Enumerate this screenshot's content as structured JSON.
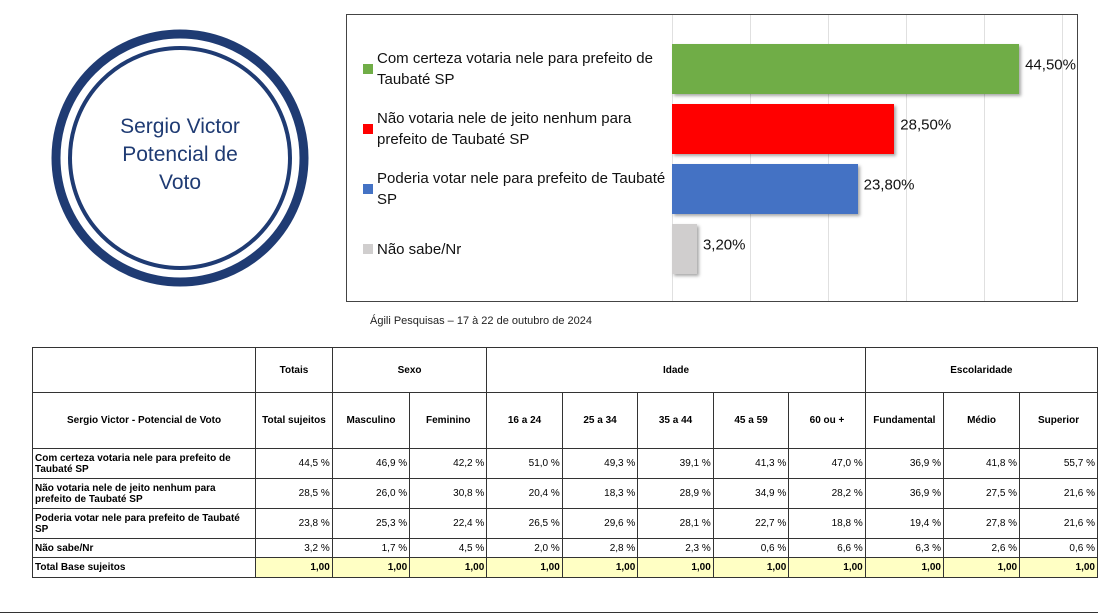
{
  "logo": {
    "lines": [
      "Sergio Victor",
      "Potencial de",
      "Voto"
    ]
  },
  "chart_data": {
    "type": "barh",
    "categories": [
      "Com certeza votaria nele para prefeito de Taubaté SP",
      "Não votaria nele de jeito nenhum para prefeito de Taubaté SP",
      "Poderia votar nele para prefeito de Taubaté SP",
      "Não sabe/Nr"
    ],
    "values": [
      44.5,
      28.5,
      23.8,
      3.2
    ],
    "value_labels": [
      "44,50%",
      "28,50%",
      "23,80%",
      "3,20%"
    ],
    "colors": [
      "#70ad47",
      "#ff0000",
      "#4472c4",
      "#d0cece"
    ],
    "xlim": [
      0,
      50
    ],
    "xticks": [
      0,
      10,
      20,
      30,
      40,
      50
    ],
    "grid": true
  },
  "source": "Ágili Pesquisas – 17 à 22 de outubro de 2024",
  "table": {
    "groups": [
      {
        "label": "Totais",
        "span": 1
      },
      {
        "label": "Sexo",
        "span": 2
      },
      {
        "label": "Idade",
        "span": 5
      },
      {
        "label": "Escolaridade",
        "span": 3
      }
    ],
    "columns": [
      "Sergio Victor - Potencial de Voto",
      "Total sujeitos",
      "Masculino",
      "Feminino",
      "16 a 24",
      "25 a 34",
      "35 a 44",
      "45 a 59",
      "60 ou +",
      "Fundamental",
      "Médio",
      "Superior"
    ],
    "rows": [
      [
        "Com certeza votaria nele para prefeito de Taubaté SP",
        "44,5 %",
        "46,9 %",
        "42,2 %",
        "51,0 %",
        "49,3 %",
        "39,1 %",
        "41,3 %",
        "47,0 %",
        "36,9 %",
        "41,8 %",
        "55,7 %"
      ],
      [
        "Não votaria nele de jeito nenhum para prefeito de Taubaté SP",
        "28,5 %",
        "26,0 %",
        "30,8 %",
        "20,4 %",
        "18,3 %",
        "28,9 %",
        "34,9 %",
        "28,2 %",
        "36,9 %",
        "27,5 %",
        "21,6 %"
      ],
      [
        "Poderia votar nele para prefeito de Taubaté SP",
        "23,8 %",
        "25,3 %",
        "22,4 %",
        "26,5 %",
        "29,6 %",
        "28,1 %",
        "22,7 %",
        "18,8 %",
        "19,4 %",
        "27,8 %",
        "21,6 %"
      ],
      [
        "Não sabe/Nr",
        "3,2 %",
        "1,7 %",
        "4,5 %",
        "2,0 %",
        "2,8 %",
        "2,3 %",
        "0,6 %",
        "6,6 %",
        "6,3 %",
        "2,6 %",
        "0,6 %"
      ],
      [
        "Total Base sujeitos",
        "1,00",
        "1,00",
        "1,00",
        "1,00",
        "1,00",
        "1,00",
        "1,00",
        "1,00",
        "1,00",
        "1,00",
        "1,00"
      ]
    ]
  }
}
